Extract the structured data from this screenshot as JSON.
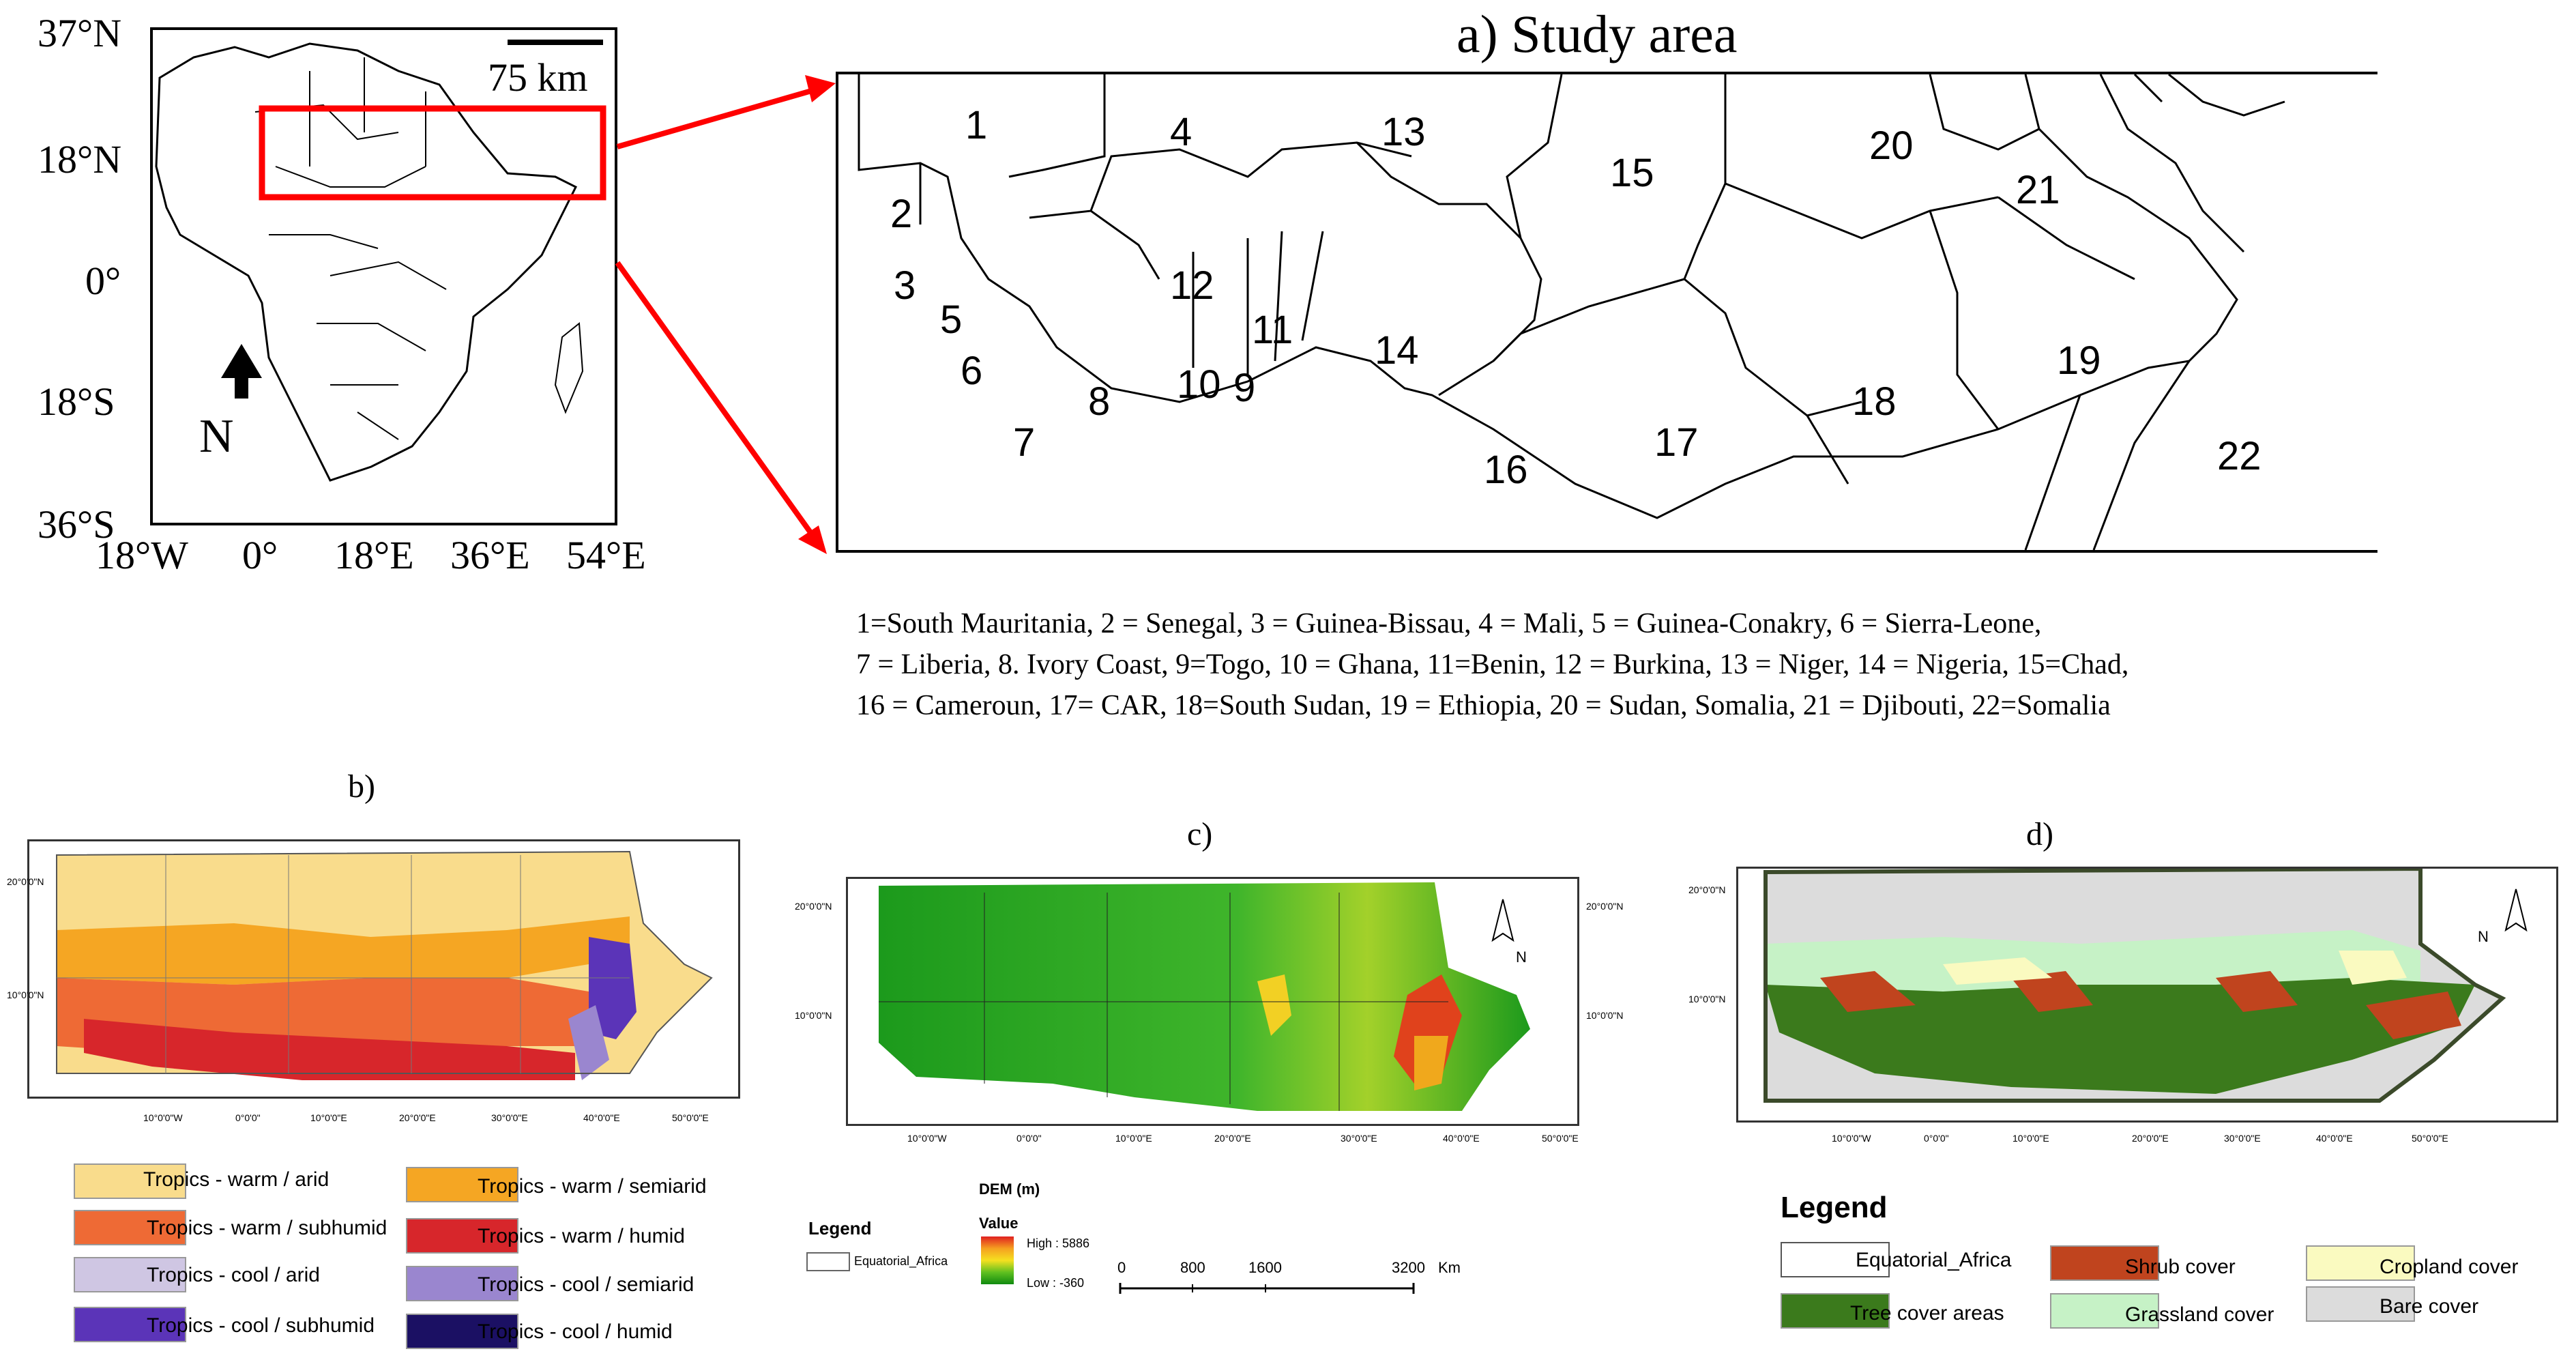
{
  "panel_a": {
    "title": "a) Study area",
    "lat_labels": [
      "37°N",
      "18°N",
      "0°",
      "18°S",
      "36°S"
    ],
    "lon_labels": [
      "18°W",
      "0°",
      "18°E",
      "36°E",
      "54°E"
    ],
    "scale": "75 km",
    "north": "N",
    "numbers": [
      "1",
      "4",
      "13",
      "15",
      "20",
      "2",
      "21",
      "3",
      "5",
      "12",
      "11",
      "14",
      "19",
      "6",
      "8",
      "10",
      "9",
      "18",
      "7",
      "17",
      "16",
      "22"
    ]
  },
  "caption": {
    "line1": "1=South Mauritania,  2 = Senegal,  3 = Guinea-Bissau,  4 = Mali,  5 = Guinea-Conakry,  6 = Sierra-Leone,",
    "line2": "7 = Liberia,  8. Ivory  Coast, 9=Togo, 10 = Ghana,  11=Benin,  12 = Burkina,  13 = Niger,  14 = Nigeria,  15=Chad,",
    "line3": "16 = Cameroun,  17= CAR, 18=South Sudan, 19 = Ethiopia,  20 = Sudan, Somalia,  21 = Djibouti,  22=Somalia"
  },
  "panel_b": {
    "label": "b)",
    "lat_labels": [
      "20°0'0\"N",
      "10°0'0\"N"
    ],
    "lon_labels": [
      "10°0'0\"W",
      "0°0'0\"",
      "10°0'0\"E",
      "20°0'0\"E",
      "30°0'0\"E",
      "40°0'0\"E",
      "50°0'0\"E"
    ],
    "legend": [
      {
        "label": "Tropics - warm / arid",
        "color": "#f9dc8c"
      },
      {
        "label": "Tropics - warm / semiarid",
        "color": "#f5a623"
      },
      {
        "label": "Tropics - warm / subhumid",
        "color": "#ee6a35"
      },
      {
        "label": "Tropics - warm / humid",
        "color": "#d7262b"
      },
      {
        "label": "Tropics - cool / arid",
        "color": "#cfc6e3"
      },
      {
        "label": "Tropics - cool / semiarid",
        "color": "#9a86cf"
      },
      {
        "label": "Tropics - cool / subhumid",
        "color": "#5b34b8"
      },
      {
        "label": "Tropics - cool / humid",
        "color": "#1b1063"
      }
    ]
  },
  "panel_c": {
    "label": "c)",
    "lat_labels": [
      "20°0'0\"N",
      "10°0'0\"N"
    ],
    "lon_labels": [
      "10°0'0\"W",
      "0°0'0\"",
      "10°0'0\"E",
      "20°0'0\"E",
      "30°0'0\"E",
      "40°0'0\"E",
      "50°0'0\"E"
    ],
    "legend_title": "Legend",
    "legend_item": "Equatorial_Africa",
    "dem_title": "DEM (m)",
    "value_label": "Value",
    "high": "High : 5886",
    "low": "Low : -360",
    "scale_ticks": [
      "0",
      "800",
      "1600",
      "3200"
    ],
    "scale_unit": "Km",
    "north": "N"
  },
  "panel_d": {
    "label": "d)",
    "lat_labels": [
      "20°0'0\"N",
      "10°0'0\"N"
    ],
    "lon_labels": [
      "10°0'0\"W",
      "0°0'0\"",
      "10°0'0\"E",
      "20°0'0\"E",
      "30°0'0\"E",
      "40°0'0\"E",
      "50°0'0\"E"
    ],
    "legend_title": "Legend",
    "legend": [
      {
        "label": "Equatorial_Africa",
        "color": "#ffffff"
      },
      {
        "label": "Shrub cover",
        "color": "#c0441e"
      },
      {
        "label": "Cropland cover",
        "color": "#fafac0"
      },
      {
        "label": "Tree cover areas",
        "color": "#3b7a1c"
      },
      {
        "label": "Grassland cover",
        "color": "#c6f2c6"
      },
      {
        "label": "Bare cover",
        "color": "#dcdcdc"
      }
    ],
    "north": "N"
  },
  "colors": {
    "highlight": "#ff0000"
  }
}
